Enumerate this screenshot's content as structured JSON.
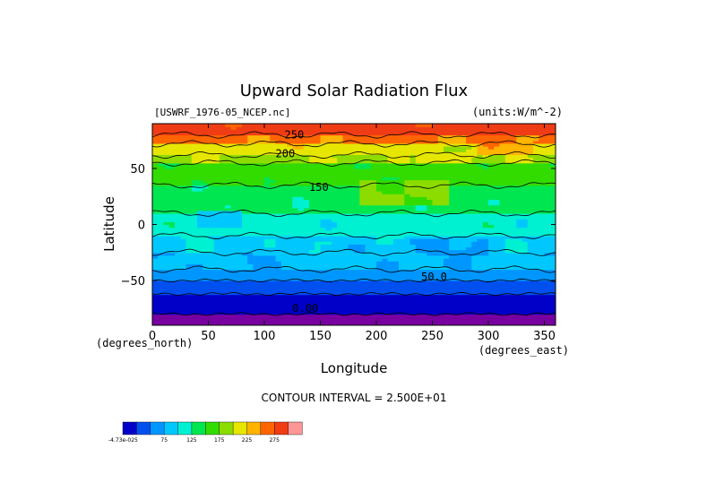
{
  "chart_data": {
    "type": "heatmap",
    "title": "Upward Solar Radiation Flux",
    "source_label": "[USWRF_1976-05_NCEP.nc]",
    "units_label": "(units:W/m^-2)",
    "xlabel": "Longitude",
    "ylabel": "Latitude",
    "x_unit_label": "(degrees_east)",
    "y_unit_label": "(degrees_north)",
    "xlim": [
      0,
      360
    ],
    "ylim": [
      -90,
      90
    ],
    "x_ticks": [
      0,
      50,
      100,
      150,
      200,
      250,
      300,
      350
    ],
    "y_ticks": [
      -50,
      0,
      50
    ],
    "contour_interval_label": "CONTOUR INTERVAL = 2.500E+01",
    "contour_labels": [
      {
        "text": "250",
        "lon": 118,
        "lat": 77
      },
      {
        "text": "200",
        "lon": 110,
        "lat": 60
      },
      {
        "text": "150",
        "lon": 140,
        "lat": 30
      },
      {
        "text": "50.0",
        "lon": 240,
        "lat": -50
      },
      {
        "text": "0.00",
        "lon": 125,
        "lat": -78
      }
    ],
    "latitude_bands": [
      {
        "lat_min": -90,
        "lat_max": -80,
        "value": 0
      },
      {
        "lat_min": -80,
        "lat_max": -62,
        "value": 12
      },
      {
        "lat_min": -62,
        "lat_max": -50,
        "value": 37
      },
      {
        "lat_min": -50,
        "lat_max": -40,
        "value": 62
      },
      {
        "lat_min": -40,
        "lat_max": -25,
        "value": 80
      },
      {
        "lat_min": -25,
        "lat_max": -10,
        "value": 95
      },
      {
        "lat_min": -10,
        "lat_max": 10,
        "value": 112
      },
      {
        "lat_min": 10,
        "lat_max": 35,
        "value": 135
      },
      {
        "lat_min": 35,
        "lat_max": 55,
        "value": 160
      },
      {
        "lat_min": 55,
        "lat_max": 62,
        "value": 195
      },
      {
        "lat_min": 62,
        "lat_max": 72,
        "value": 215
      },
      {
        "lat_min": 72,
        "lat_max": 80,
        "value": 255
      },
      {
        "lat_min": 80,
        "lat_max": 90,
        "value": 285
      }
    ],
    "regional_features": [
      {
        "lon_min": 215,
        "lon_max": 300,
        "lat_min": -27,
        "lat_max": -12,
        "value": 75
      },
      {
        "lon_min": 150,
        "lon_max": 215,
        "lat_min": -28,
        "lat_max": -18,
        "value": 85
      },
      {
        "lon_min": 185,
        "lon_max": 265,
        "lat_min": 18,
        "lat_max": 40,
        "value": 180
      },
      {
        "lon_min": 235,
        "lon_max": 300,
        "lat_min": 55,
        "lat_max": 70,
        "value": 205
      },
      {
        "lon_min": 290,
        "lon_max": 340,
        "lat_min": 62,
        "lat_max": 72,
        "value": 240
      },
      {
        "lon_min": 40,
        "lon_max": 80,
        "lat_min": -2,
        "lat_max": 12,
        "value": 95
      }
    ],
    "colorbar": {
      "labels": [
        "-4.73e-025",
        "75",
        "125",
        "175",
        "225",
        "275"
      ],
      "colors": [
        "#0000c8",
        "#0050f0",
        "#0096ff",
        "#00c8ff",
        "#00f0d2",
        "#00e650",
        "#32dc00",
        "#8cdc00",
        "#e6e600",
        "#ffb400",
        "#ff6400",
        "#f03c14",
        "#ff9696"
      ],
      "min": 0,
      "max": 300,
      "step": 25,
      "below_min_color": "#7800a0"
    }
  }
}
